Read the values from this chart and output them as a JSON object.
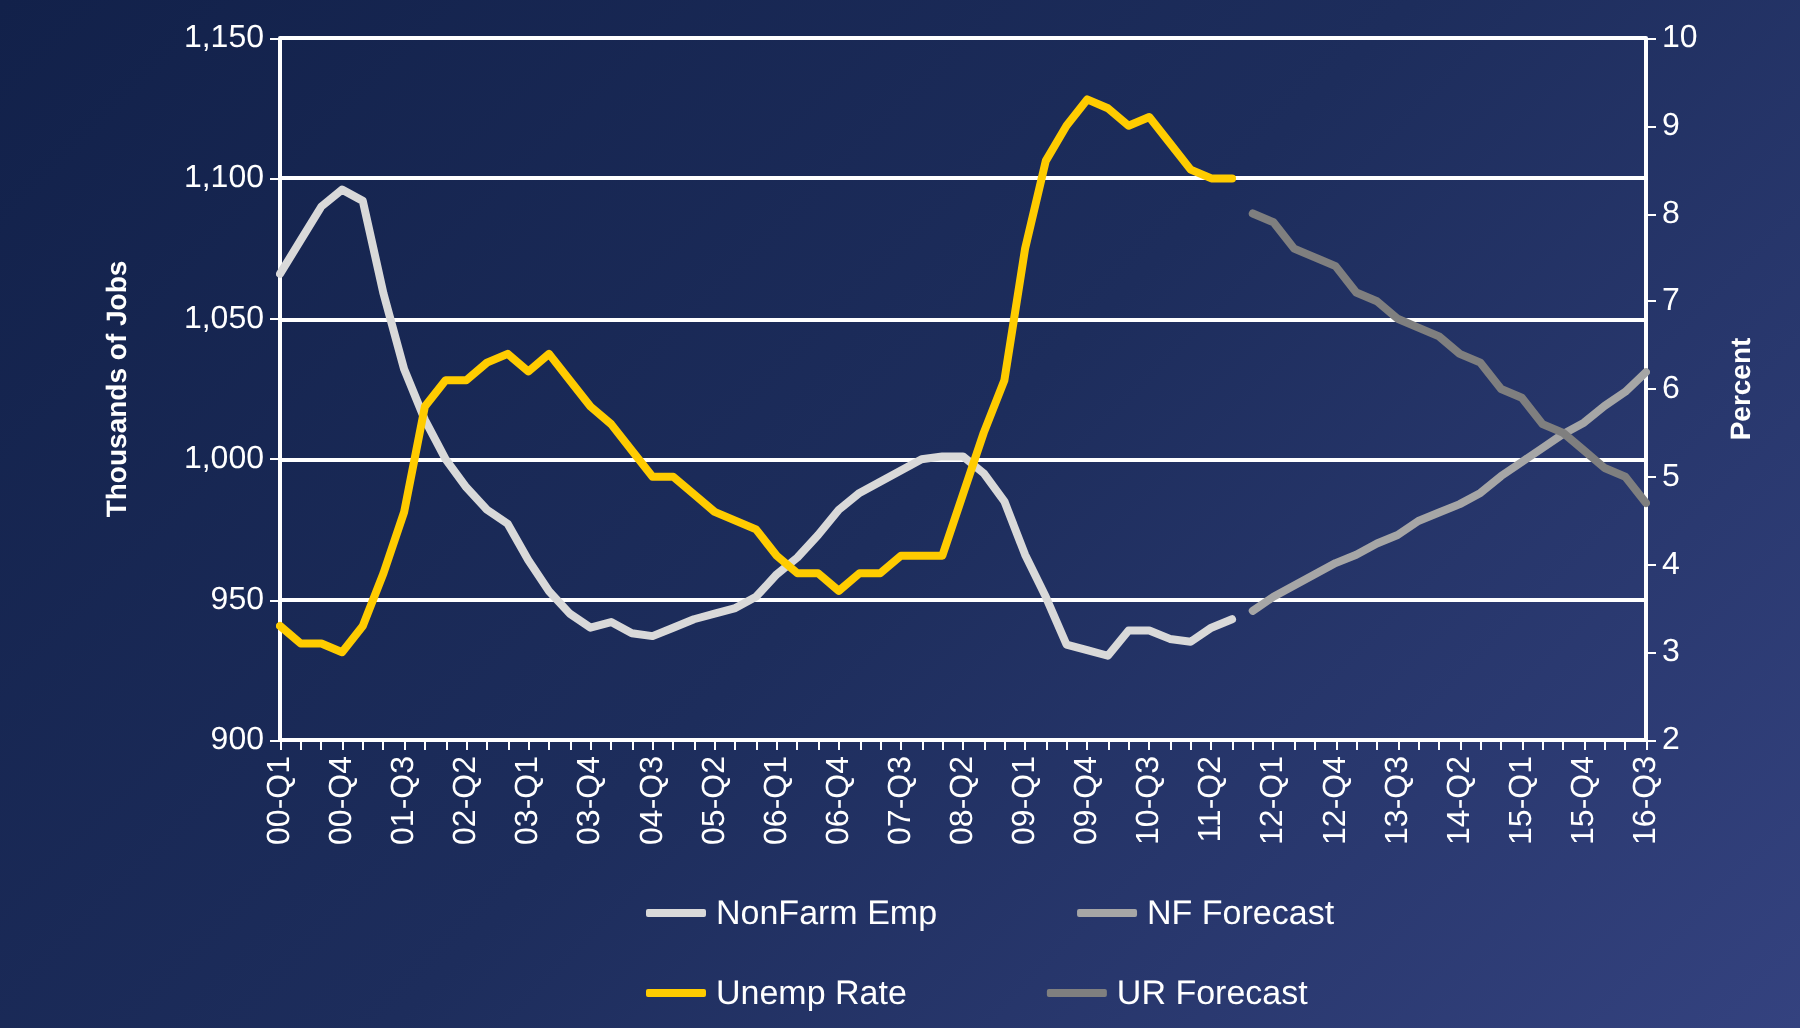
{
  "chart_data": {
    "type": "line",
    "categories": [
      "00-Q1",
      null,
      null,
      "00-Q4",
      null,
      null,
      "01-Q3",
      null,
      null,
      "02-Q2",
      null,
      null,
      "03-Q1",
      null,
      null,
      "03-Q4",
      null,
      null,
      "04-Q3",
      null,
      null,
      "05-Q2",
      null,
      null,
      "06-Q1",
      null,
      null,
      "06-Q4",
      null,
      null,
      "07-Q3",
      null,
      null,
      "08-Q2",
      null,
      null,
      "09-Q1",
      null,
      null,
      "09-Q4",
      null,
      null,
      "10-Q3",
      null,
      null,
      "11-Q2",
      null,
      null,
      "12-Q1",
      null,
      null,
      "12-Q4",
      null,
      null,
      "13-Q3",
      null,
      null,
      "14-Q2",
      null,
      null,
      "15-Q1",
      null,
      null,
      "15-Q4",
      null,
      null,
      "16-Q3"
    ],
    "series": [
      {
        "name": "NonFarm Emp",
        "color": "#d9d9d9",
        "values": [
          1066,
          1078,
          1090,
          1096,
          1092,
          1059,
          1032,
          1014,
          1000,
          990,
          982,
          977,
          964,
          953,
          945,
          940,
          942,
          938,
          937,
          940,
          943,
          945,
          947,
          951,
          959,
          965,
          973,
          982,
          988,
          992,
          996,
          1000,
          1001,
          1001,
          995,
          985,
          966,
          951,
          934,
          932,
          930,
          939,
          939,
          936,
          935,
          940,
          943,
          null,
          null,
          null,
          null,
          null,
          null,
          null,
          null,
          null,
          null,
          null,
          null,
          null,
          null,
          null,
          null,
          null,
          null,
          null,
          null
        ]
      },
      {
        "name": "NF Forecast",
        "color": "#a6a6a6",
        "values": [
          null,
          null,
          null,
          null,
          null,
          null,
          null,
          null,
          null,
          null,
          null,
          null,
          null,
          null,
          null,
          null,
          null,
          null,
          null,
          null,
          null,
          null,
          null,
          null,
          null,
          null,
          null,
          null,
          null,
          null,
          null,
          null,
          null,
          null,
          null,
          null,
          null,
          null,
          null,
          null,
          null,
          null,
          null,
          null,
          null,
          null,
          null,
          946,
          951,
          955,
          959,
          963,
          966,
          970,
          973,
          978,
          981,
          984,
          988,
          994,
          999,
          1004,
          1009,
          1013,
          1019,
          1024,
          1031
        ]
      },
      {
        "name": "Unemp Rate",
        "color": "#ffcc00",
        "axis": "y2",
        "values": [
          3.3,
          3.1,
          3.1,
          3.0,
          3.3,
          3.9,
          4.6,
          5.8,
          6.1,
          6.1,
          6.3,
          6.4,
          6.2,
          6.4,
          6.1,
          5.8,
          5.6,
          5.3,
          5.0,
          5.0,
          4.8,
          4.6,
          4.5,
          4.4,
          4.1,
          3.9,
          3.9,
          3.7,
          3.9,
          3.9,
          4.1,
          4.1,
          4.1,
          4.8,
          5.5,
          6.1,
          7.6,
          8.6,
          9.0,
          9.3,
          9.2,
          9.0,
          9.1,
          8.8,
          8.5,
          8.4,
          8.4,
          null,
          null,
          null,
          null,
          null,
          null,
          null,
          null,
          null,
          null,
          null,
          null,
          null,
          null,
          null,
          null,
          null,
          null,
          null,
          null
        ]
      },
      {
        "name": "UR Forecast",
        "color": "#7f7f7f",
        "axis": "y2",
        "values": [
          null,
          null,
          null,
          null,
          null,
          null,
          null,
          null,
          null,
          null,
          null,
          null,
          null,
          null,
          null,
          null,
          null,
          null,
          null,
          null,
          null,
          null,
          null,
          null,
          null,
          null,
          null,
          null,
          null,
          null,
          null,
          null,
          null,
          null,
          null,
          null,
          null,
          null,
          null,
          null,
          null,
          null,
          null,
          null,
          null,
          null,
          null,
          8.0,
          7.9,
          7.6,
          7.5,
          7.4,
          7.1,
          7.0,
          6.8,
          6.7,
          6.6,
          6.4,
          6.3,
          6.0,
          5.9,
          5.6,
          5.5,
          5.3,
          5.1,
          5.0,
          4.7
        ]
      }
    ],
    "ylabel": "Thousands of Jobs",
    "y2label": "Percent",
    "ylim": [
      900,
      1150
    ],
    "yticks": [
      900,
      950,
      {
        "value": 1000,
        "label": "1,000"
      },
      {
        "value": 1050,
        "label": "1,050"
      },
      {
        "value": 1100,
        "label": "1,100"
      },
      {
        "value": 1150,
        "label": "1,150"
      }
    ],
    "y2lim": [
      2,
      10
    ],
    "y2ticks": [
      2,
      3,
      4,
      5,
      6,
      7,
      8,
      9,
      10
    ],
    "grid": "y",
    "legend": "bottom",
    "marker": "none",
    "line_style": "solid"
  }
}
